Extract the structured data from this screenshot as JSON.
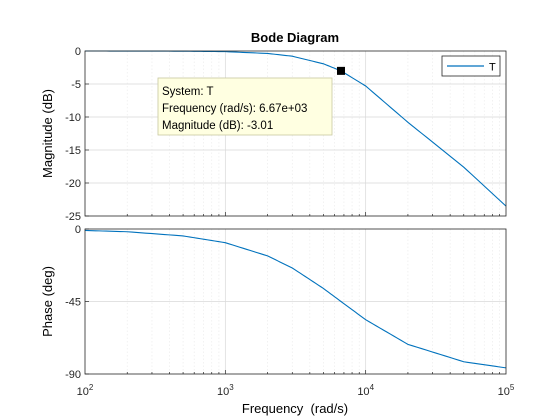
{
  "chart_data": {
    "type": "line",
    "title": "Bode Diagram",
    "xlabel": "Frequency  (rad/s)",
    "x_scale": "log",
    "xlim": [
      100,
      100000
    ],
    "x_ticks": [
      {
        "value": 100,
        "base": "10",
        "exp": "2"
      },
      {
        "value": 1000,
        "base": "10",
        "exp": "3"
      },
      {
        "value": 10000,
        "base": "10",
        "exp": "4"
      },
      {
        "value": 100000,
        "base": "10",
        "exp": "5"
      }
    ],
    "grid": true,
    "line_color": "#0072BD",
    "marker_color": "#000000",
    "magnitude": {
      "ylabel": "Magnitude (dB)",
      "ylim": [
        -25,
        0
      ],
      "y_ticks": [
        0,
        -5,
        -10,
        -15,
        -20,
        -25
      ],
      "y_tick_labels": [
        "0",
        "-5",
        "-10",
        "-15",
        "-20",
        "-25"
      ],
      "series": [
        {
          "name": "T",
          "x": [
            100,
            200,
            500,
            1000,
            2000,
            3000,
            5000,
            6670,
            10000,
            20000,
            50000,
            100000
          ],
          "y": [
            0,
            -0.004,
            -0.024,
            -0.096,
            -0.37,
            -0.79,
            -1.94,
            -3.01,
            -5.3,
            -10.8,
            -17.6,
            -23.5
          ]
        }
      ]
    },
    "phase": {
      "ylabel": "Phase (deg)",
      "ylim": [
        -90,
        0
      ],
      "y_ticks": [
        0,
        -45,
        -90
      ],
      "y_tick_labels": [
        "0",
        "-45",
        "-90"
      ],
      "series": [
        {
          "name": "T",
          "x": [
            100,
            200,
            500,
            1000,
            2000,
            3000,
            5000,
            6670,
            10000,
            20000,
            50000,
            100000
          ],
          "y": [
            -0.9,
            -1.7,
            -4.3,
            -8.5,
            -16.7,
            -24.2,
            -36.9,
            -45,
            -56.3,
            -71.6,
            -82.4,
            -86.2
          ]
        }
      ]
    },
    "legend": {
      "entries": [
        "T"
      ],
      "position": "top-right"
    },
    "datatip": {
      "x": 6670,
      "y": -3.01,
      "lines": [
        "System: T",
        "Frequency (rad/s): 6.67e+03",
        "Magnitude (dB): -3.01"
      ]
    }
  }
}
